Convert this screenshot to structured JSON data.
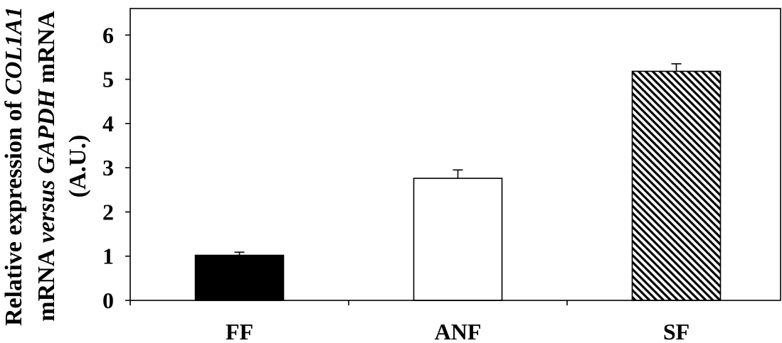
{
  "chart_data": {
    "type": "bar",
    "categories": [
      "FF",
      "ANF",
      "SF"
    ],
    "values": [
      1.02,
      2.76,
      5.18
    ],
    "error_upper": [
      0.07,
      0.19,
      0.17
    ],
    "ylim": [
      0,
      6.6
    ],
    "yticks": [
      0,
      1,
      2,
      3,
      4,
      5,
      6
    ],
    "ylabel_lines": [
      [
        "Relative expression of",
        "COL1A1"
      ],
      [
        "mRNA",
        "versus",
        "GAPDH",
        "mRNA"
      ],
      [
        "(A.U.)"
      ]
    ],
    "bar_fills": [
      {
        "color": "#000000",
        "pattern": "solid"
      },
      {
        "color": "#ffffff",
        "pattern": "solid"
      },
      {
        "color": "#000000",
        "pattern": "diagonal-hatch"
      }
    ],
    "grid": false
  }
}
